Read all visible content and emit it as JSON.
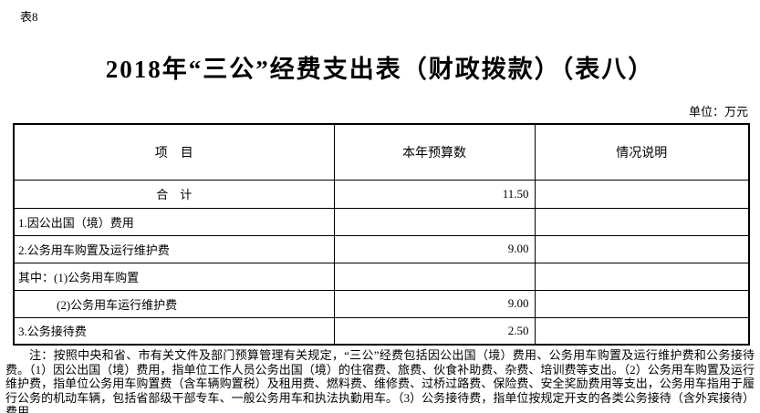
{
  "page": {
    "corner_label": "表8",
    "title": "2018年“三公”经费支出表（财政拨款）（表八）",
    "unit_label": "单位：万元"
  },
  "colors": {
    "background": "#ffffff",
    "text": "#000000",
    "table_border": "#000000"
  },
  "table": {
    "headers": {
      "item": "项　目",
      "budget": "本年预算数",
      "note": "情况说明"
    },
    "rows": [
      {
        "label": "合　计",
        "value": "11.50",
        "note": ""
      },
      {
        "label": "1.因公出国（境）费用",
        "value": "",
        "note": ""
      },
      {
        "label": "2.公务用车购置及运行维护费",
        "value": "9.00",
        "note": ""
      },
      {
        "label": "其中：(1)公务用车购置",
        "value": "",
        "note": ""
      },
      {
        "label": "(2)公务用车运行维护费",
        "value": "9.00",
        "note": ""
      },
      {
        "label": "3.公务接待费",
        "value": "2.50",
        "note": ""
      }
    ]
  },
  "footnote": {
    "text": "注：按照中央和省、市有关文件及部门预算管理有关规定，“三公”经费包括因公出国（境）费用、公务用车购置及运行维护费和公务接待费。（1）因公出国（境）费用，指单位工作人员公务出国（境）的住宿费、旅费、伙食补助费、杂费、培训费等支出。（2）公务用车购置及运行维护费，指单位公务用车购置费（含车辆购置税）及租用费、燃料费、维修费、过桥过路费、保险费、安全奖励费用等支出，公务用车指用于履行公务的机动车辆，包括省部级干部专车、一般公务用车和执法执勤用车。（3）公务接待费，指单位按规定开支的各类公务接待（含外宾接待）费用。"
  }
}
